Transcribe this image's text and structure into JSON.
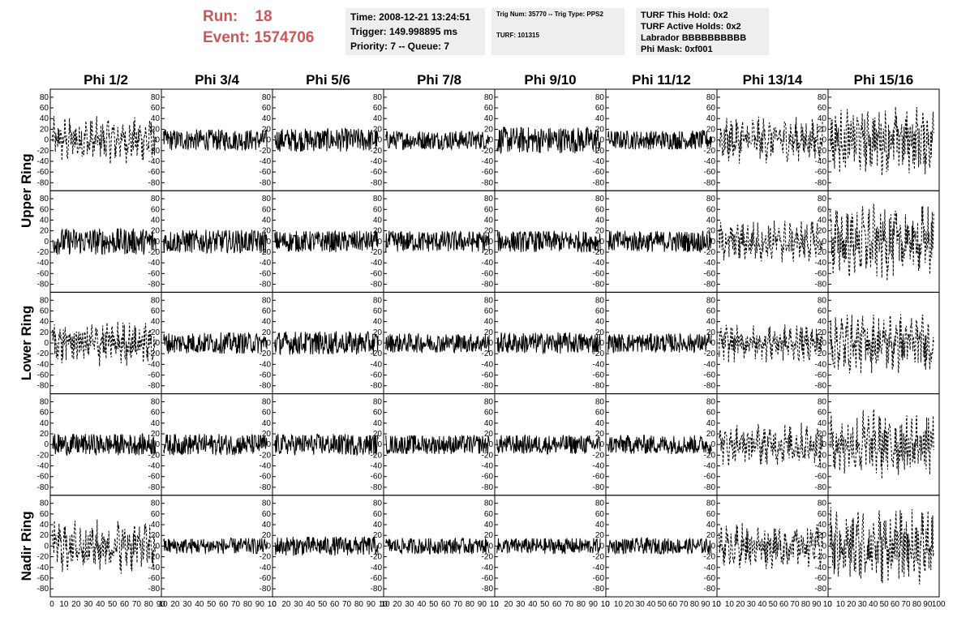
{
  "header": {
    "run_label": "Run:",
    "run_value": "18",
    "event_label": "Event:",
    "event_value": "1574706",
    "time_line": "Time: 2008-12-21 13:24:51",
    "trigger_line": "Trigger: 149.998895 ms",
    "priority_line": "Priority: 7 -- Queue: 7",
    "trig_line": "Trig Num: 35770 -- Trig Type: PPS2",
    "turf_line": "TURF: 101315",
    "hold_line": "TURF This Hold: 0x2",
    "active_line": "TURF Active Holds: 0x2",
    "labrador_line": "Labrador BBBBBBBBBB",
    "phimask_line": "Phi Mask: 0xf001"
  },
  "colors": {
    "header_red": "#cc5555",
    "info_bg": "#eeeeee",
    "trace": "#000000"
  },
  "chart_data": {
    "type": "line",
    "columns": [
      "Phi 1/2",
      "Phi 3/4",
      "Phi 5/6",
      "Phi 7/8",
      "Phi 9/10",
      "Phi 11/12",
      "Phi 13/14",
      "Phi 15/16"
    ],
    "rows": [
      "Upper Ring",
      "Lower Ring",
      "Nadir Ring"
    ],
    "panel_rows": 5,
    "xlim": [
      0,
      100
    ],
    "ylim": [
      -95,
      95
    ],
    "yticks": [
      80,
      60,
      40,
      20,
      0,
      -20,
      -40,
      -60,
      -80
    ],
    "xtick_labels": [
      [
        "0",
        "10",
        "20",
        "30",
        "40",
        "50",
        "60",
        "70",
        "80",
        "90"
      ],
      [
        "10",
        "20",
        "30",
        "40",
        "50",
        "60",
        "70",
        "80",
        "90",
        "10"
      ],
      [
        "0",
        "20",
        "30",
        "40",
        "50",
        "60",
        "70",
        "80",
        "90",
        "10"
      ],
      [
        "10",
        "20",
        "30",
        "40",
        "50",
        "60",
        "70",
        "80",
        "90",
        "10"
      ],
      [
        "0",
        "20",
        "30",
        "40",
        "50",
        "60",
        "70",
        "80",
        "90",
        "10"
      ],
      [
        "0",
        "10",
        "20",
        "30",
        "40",
        "50",
        "60",
        "70",
        "80",
        "90",
        "10"
      ],
      [
        "0",
        "10",
        "20",
        "30",
        "40",
        "50",
        "60",
        "70",
        "80",
        "90",
        "10"
      ],
      [
        "0",
        "10",
        "20",
        "30",
        "40",
        "50",
        "60",
        "70",
        "80",
        "90",
        "100"
      ]
    ],
    "traces": {
      "description_style": "each panel shows one noise waveform; solid = approx ±20 amplitude, dashed = approx ±40 amplitude",
      "amplitudes": [
        [
          30,
          20,
          22,
          18,
          25,
          18,
          30,
          45
        ],
        [
          25,
          22,
          20,
          20,
          20,
          20,
          28,
          50
        ],
        [
          30,
          20,
          22,
          18,
          20,
          18,
          25,
          40
        ],
        [
          20,
          20,
          20,
          18,
          18,
          18,
          28,
          45
        ],
        [
          35,
          15,
          18,
          15,
          15,
          15,
          30,
          50
        ]
      ],
      "dashed": [
        [
          true,
          false,
          false,
          false,
          false,
          false,
          true,
          true
        ],
        [
          false,
          false,
          false,
          false,
          false,
          false,
          true,
          true
        ],
        [
          true,
          false,
          false,
          false,
          false,
          false,
          true,
          true
        ],
        [
          false,
          false,
          false,
          false,
          false,
          false,
          true,
          true
        ],
        [
          true,
          false,
          false,
          false,
          false,
          false,
          true,
          true
        ]
      ]
    }
  }
}
